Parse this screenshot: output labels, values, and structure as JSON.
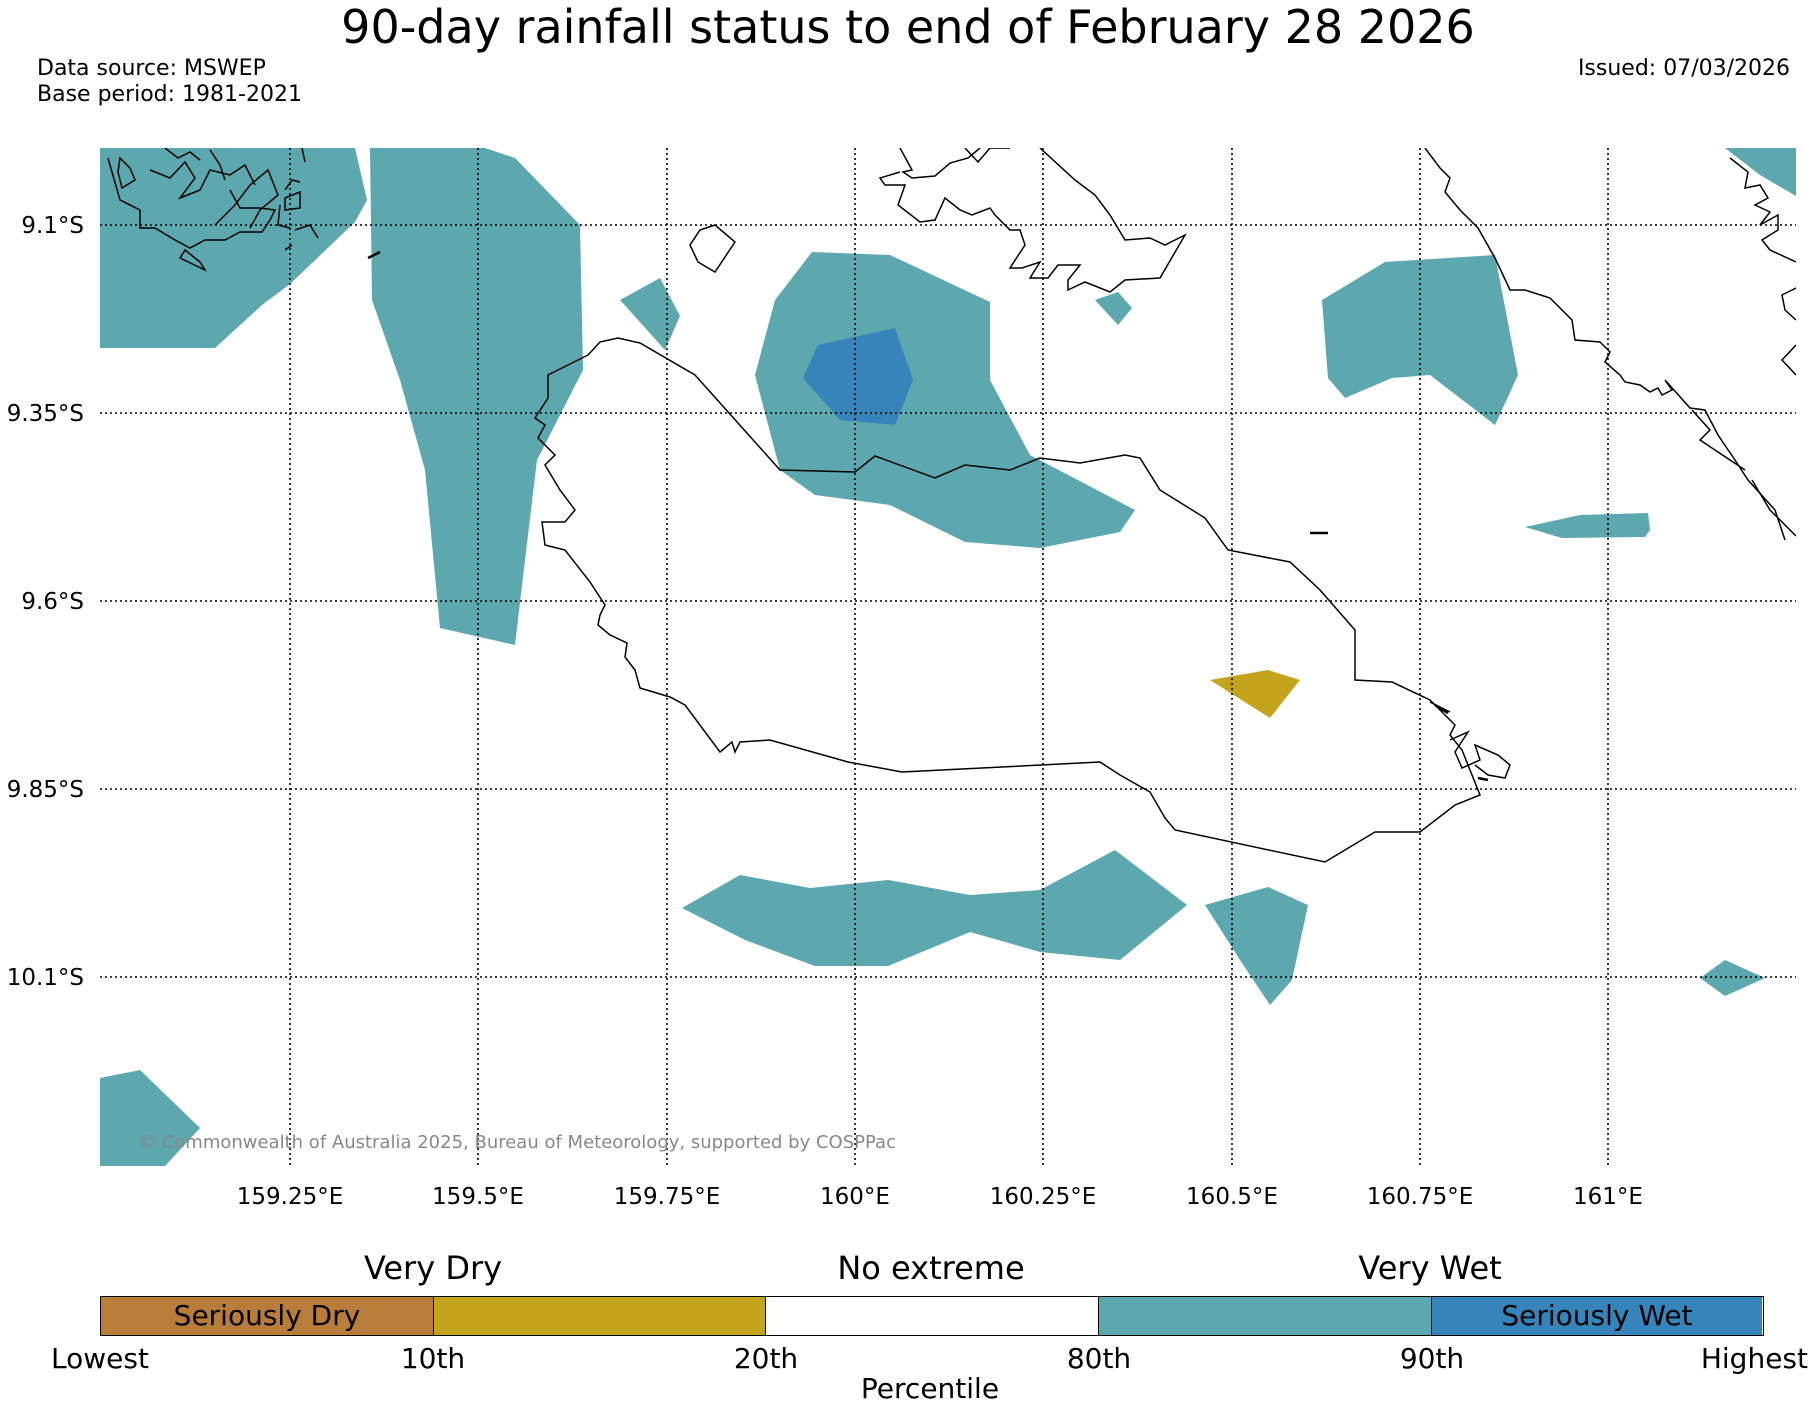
{
  "header": {
    "title": "90-day rainfall status to end of February 28 2026",
    "data_source": "Data source: MSWEP",
    "base_period": "Base period: 1981-2021",
    "issued": "Issued: 07/03/2026"
  },
  "map": {
    "lon_labels": [
      "159.25°E",
      "159.5°E",
      "159.75°E",
      "160°E",
      "160.25°E",
      "160.5°E",
      "160.75°E",
      "161°E"
    ],
    "lat_labels": [
      "9.1°S",
      "9.35°S",
      "9.6°S",
      "9.85°S",
      "10.1°S"
    ],
    "copyright": "© Commonwealth of Australia 2025, Bureau of Meteorology, supported by COSPPac",
    "colors": {
      "very_wet": "#5ca8ae",
      "seriously_wet": "#3684ba",
      "very_dry": "#c4a41c",
      "seriously_dry": "#b87d3a",
      "no_extreme": "#ffffff"
    }
  },
  "legend": {
    "group_labels": [
      "Very Dry",
      "No extreme",
      "Very Wet"
    ],
    "segments": [
      {
        "label": "Seriously Dry",
        "color": "#b87d3a"
      },
      {
        "label": "",
        "color": "#c4a41c"
      },
      {
        "label": "",
        "color": "#ffffff"
      },
      {
        "label": "",
        "color": "#5ca8ae"
      },
      {
        "label": "Seriously Wet",
        "color": "#3684ba"
      }
    ],
    "ticks": [
      "Lowest",
      "10th",
      "20th",
      "80th",
      "90th",
      "Highest"
    ],
    "axis_title": "Percentile"
  }
}
